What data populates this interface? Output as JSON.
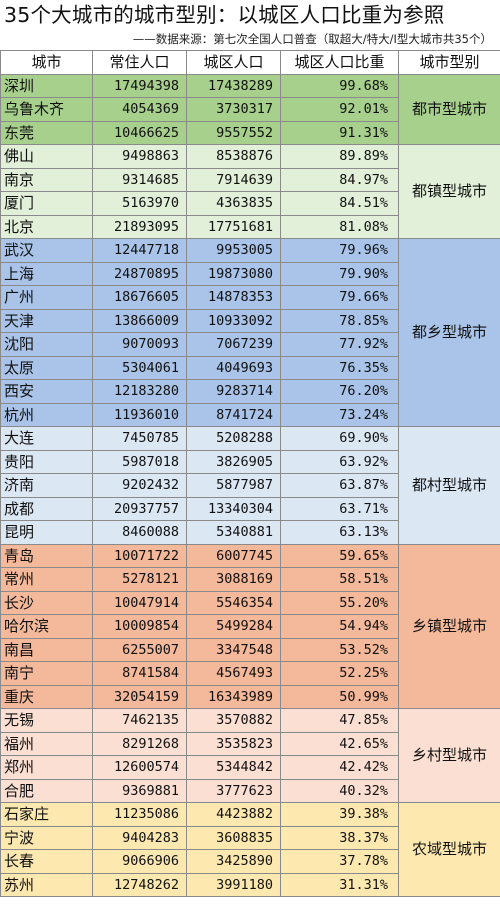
{
  "title": "35个大城市的城市型别：以城区人口比重为参照",
  "subtitle": "——数据来源：第七次全国人口普查（取超大/特大/Ⅰ型大城市共35个）",
  "headers": [
    "城市",
    "常住人口",
    "城区人口",
    "城区人口比重",
    "城市型别"
  ],
  "groups": [
    {
      "type": "都市型城市",
      "color": "#a8d08d",
      "rows": [
        [
          "深圳",
          "17494398",
          "17438289",
          "99.68%"
        ],
        [
          "乌鲁木齐",
          "4054369",
          "3730317",
          "92.01%"
        ],
        [
          "东莞",
          "10466625",
          "9557552",
          "91.31%"
        ]
      ]
    },
    {
      "type": "都镇型城市",
      "color": "#e2efd9",
      "rows": [
        [
          "佛山",
          "9498863",
          "8538876",
          "89.89%"
        ],
        [
          "南京",
          "9314685",
          "7914639",
          "84.97%"
        ],
        [
          "厦门",
          "5163970",
          "4363835",
          "84.51%"
        ],
        [
          "北京",
          "21893095",
          "17751681",
          "81.08%"
        ]
      ]
    },
    {
      "type": "都乡型城市",
      "color": "#a9c4e8",
      "rows": [
        [
          "武汉",
          "12447718",
          "9953005",
          "79.96%"
        ],
        [
          "上海",
          "24870895",
          "19873080",
          "79.90%"
        ],
        [
          "广州",
          "18676605",
          "14878353",
          "79.66%"
        ],
        [
          "天津",
          "13866009",
          "10933092",
          "78.85%"
        ],
        [
          "沈阳",
          "9070093",
          "7067239",
          "77.92%"
        ],
        [
          "太原",
          "5304061",
          "4049693",
          "76.35%"
        ],
        [
          "西安",
          "12183280",
          "9283714",
          "76.20%"
        ],
        [
          "杭州",
          "11936010",
          "8741724",
          "73.24%"
        ]
      ]
    },
    {
      "type": "都村型城市",
      "color": "#dce7f4",
      "rows": [
        [
          "大连",
          "7450785",
          "5208288",
          "69.90%"
        ],
        [
          "贵阳",
          "5987018",
          "3826905",
          "63.92%"
        ],
        [
          "济南",
          "9202432",
          "5877987",
          "63.87%"
        ],
        [
          "成都",
          "20937757",
          "13340304",
          "63.71%"
        ],
        [
          "昆明",
          "8460088",
          "5340881",
          "63.13%"
        ]
      ]
    },
    {
      "type": "乡镇型城市",
      "color": "#f4b89a",
      "rows": [
        [
          "青岛",
          "10071722",
          "6007745",
          "59.65%"
        ],
        [
          "常州",
          "5278121",
          "3088169",
          "58.51%"
        ],
        [
          "长沙",
          "10047914",
          "5546354",
          "55.20%"
        ],
        [
          "哈尔滨",
          "10009854",
          "5499284",
          "54.94%"
        ],
        [
          "南昌",
          "6255007",
          "3347548",
          "53.52%"
        ],
        [
          "南宁",
          "8741584",
          "4567493",
          "52.25%"
        ],
        [
          "重庆",
          "32054159",
          "16343989",
          "50.99%"
        ]
      ]
    },
    {
      "type": "乡村型城市",
      "color": "#fadfd2",
      "rows": [
        [
          "无锡",
          "7462135",
          "3570882",
          "47.85%"
        ],
        [
          "福州",
          "8291268",
          "3535823",
          "42.65%"
        ],
        [
          "郑州",
          "12600574",
          "5344842",
          "42.42%"
        ],
        [
          "合肥",
          "9369881",
          "3777623",
          "40.32%"
        ]
      ]
    },
    {
      "type": "农域型城市",
      "color": "#fde9b0",
      "rows": [
        [
          "石家庄",
          "11235086",
          "4423882",
          "39.38%"
        ],
        [
          "宁波",
          "9404283",
          "3608835",
          "38.37%"
        ],
        [
          "长春",
          "9066906",
          "3425890",
          "37.78%"
        ],
        [
          "苏州",
          "12748262",
          "3991180",
          "31.31%"
        ]
      ]
    }
  ]
}
